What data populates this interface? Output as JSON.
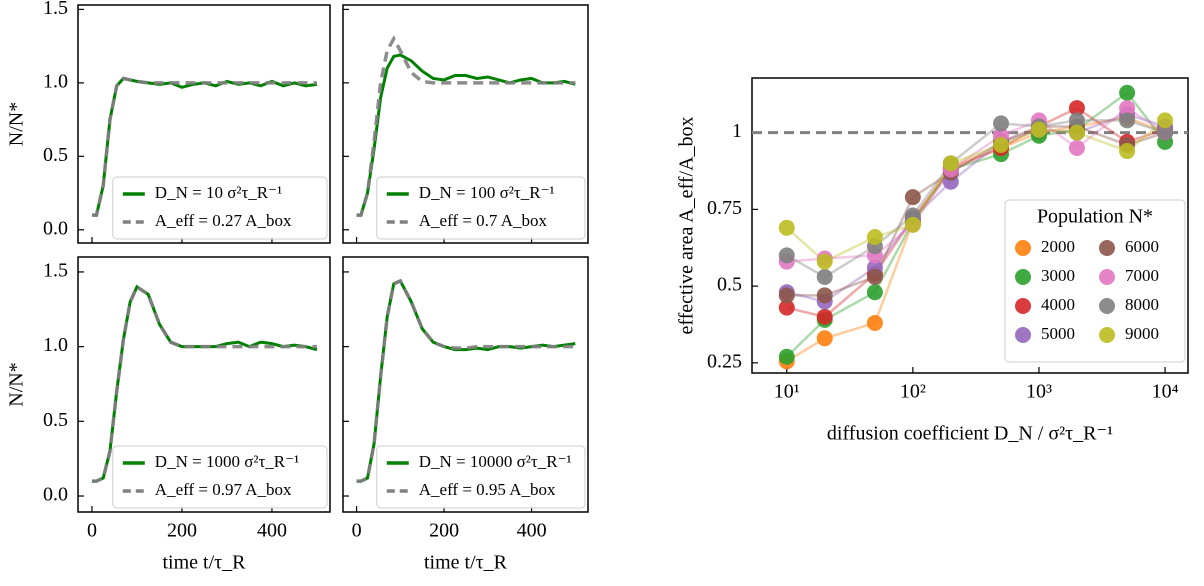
{
  "chart_data": [
    {
      "type": "line",
      "ylabel": "N/N*",
      "x": [
        0,
        10,
        25,
        40,
        55,
        70,
        85,
        100,
        125,
        150,
        175,
        200,
        225,
        250,
        275,
        300,
        325,
        350,
        375,
        400,
        425,
        450,
        475,
        500
      ],
      "series": [
        {
          "name": "D_N = 10 σ²τ_R⁻¹",
          "color": "#008000",
          "values": [
            0.1,
            0.1,
            0.3,
            0.75,
            0.98,
            1.03,
            1.02,
            1.01,
            1.0,
            0.99,
            1.0,
            0.97,
            0.99,
            1.0,
            0.98,
            1.01,
            0.99,
            1.0,
            0.98,
            1.01,
            0.98,
            1.0,
            0.98,
            0.99
          ]
        },
        {
          "name": "A_eff = 0.27 A_box",
          "color": "#808080",
          "dashed": true,
          "values": [
            0.1,
            0.1,
            0.3,
            0.75,
            0.98,
            1.03,
            1.02,
            1.01,
            1.0,
            1.0,
            1.0,
            1.0,
            1.0,
            1.0,
            1.0,
            1.0,
            1.0,
            1.0,
            1.0,
            1.0,
            1.0,
            1.0,
            1.0,
            1.0
          ]
        }
      ],
      "xlim": [
        -31,
        529
      ],
      "ylim": [
        -0.09,
        1.53
      ],
      "yticks": [
        {
          "value": 0,
          "label": "0.0"
        },
        0.5,
        {
          "value": 1,
          "label": "1.0"
        },
        1.5
      ],
      "legend": "lower right"
    },
    {
      "type": "line",
      "x": [
        0,
        10,
        25,
        40,
        55,
        70,
        85,
        100,
        125,
        150,
        175,
        200,
        225,
        250,
        275,
        300,
        325,
        350,
        375,
        400,
        425,
        450,
        475,
        500
      ],
      "series": [
        {
          "name": "D_N = 100 σ²τ_R⁻¹",
          "color": "#008000",
          "values": [
            0.1,
            0.1,
            0.25,
            0.55,
            0.9,
            1.1,
            1.18,
            1.19,
            1.15,
            1.08,
            1.03,
            1.02,
            1.05,
            1.05,
            1.03,
            1.04,
            1.02,
            1.0,
            1.02,
            1.03,
            1.0,
            1.0,
            1.01,
            0.99
          ]
        },
        {
          "name": "A_eff = 0.7 A_box",
          "color": "#808080",
          "dashed": true,
          "values": [
            0.1,
            0.1,
            0.25,
            0.6,
            1.0,
            1.22,
            1.3,
            1.22,
            1.07,
            1.01,
            1.0,
            1.0,
            1.0,
            1.0,
            1.0,
            1.0,
            1.0,
            1.0,
            1.0,
            1.0,
            1.0,
            1.0,
            1.0,
            1.0
          ]
        }
      ],
      "xlim": [
        -31,
        529
      ],
      "ylim": [
        -0.09,
        1.53
      ],
      "legend": "lower right"
    },
    {
      "type": "line",
      "ylabel": "N/N*",
      "xlabel": "time t/τ_R",
      "x": [
        0,
        10,
        25,
        40,
        55,
        70,
        85,
        100,
        125,
        150,
        175,
        200,
        225,
        250,
        275,
        300,
        325,
        350,
        375,
        400,
        425,
        450,
        475,
        500
      ],
      "series": [
        {
          "name": "D_N = 1000 σ²τ_R⁻¹",
          "color": "#008000",
          "values": [
            0.1,
            0.1,
            0.12,
            0.3,
            0.7,
            1.05,
            1.3,
            1.4,
            1.35,
            1.15,
            1.03,
            1.0,
            1.0,
            1.0,
            1.0,
            1.02,
            1.03,
            1.0,
            1.03,
            1.02,
            1.0,
            1.01,
            1.0,
            0.98
          ]
        },
        {
          "name": "A_eff = 0.97 A_box",
          "color": "#808080",
          "dashed": true,
          "values": [
            0.1,
            0.1,
            0.12,
            0.3,
            0.7,
            1.05,
            1.3,
            1.4,
            1.35,
            1.15,
            1.03,
            1.0,
            1.0,
            1.0,
            1.0,
            1.0,
            1.0,
            1.0,
            1.0,
            1.0,
            1.0,
            1.0,
            1.0,
            1.0
          ]
        }
      ],
      "xlim": [
        -31,
        529
      ],
      "ylim": [
        -0.107,
        1.6
      ],
      "yticks": [
        {
          "value": 0,
          "label": "0.0"
        },
        0.5,
        {
          "value": 1,
          "label": "1.0"
        },
        1.5
      ],
      "xticks": [
        0,
        200,
        400
      ],
      "legend": "lower right"
    },
    {
      "type": "line",
      "xlabel": "time t/τ_R",
      "x": [
        0,
        10,
        25,
        40,
        55,
        70,
        85,
        100,
        125,
        150,
        175,
        200,
        225,
        250,
        275,
        300,
        325,
        350,
        375,
        400,
        425,
        450,
        475,
        500
      ],
      "series": [
        {
          "name": "D_N = 10000 σ²τ_R⁻¹",
          "color": "#008000",
          "values": [
            0.1,
            0.1,
            0.12,
            0.35,
            0.8,
            1.2,
            1.42,
            1.44,
            1.3,
            1.12,
            1.03,
            1.0,
            0.98,
            0.98,
            0.99,
            0.98,
            1.0,
            1.0,
            0.99,
            1.0,
            1.01,
            1.0,
            1.01,
            1.02
          ]
        },
        {
          "name": "A_eff = 0.95 A_box",
          "color": "#808080",
          "dashed": true,
          "values": [
            0.1,
            0.1,
            0.12,
            0.35,
            0.8,
            1.2,
            1.42,
            1.44,
            1.3,
            1.12,
            1.03,
            1.0,
            0.99,
            0.99,
            1.0,
            1.0,
            1.0,
            1.0,
            1.0,
            1.0,
            1.0,
            1.0,
            1.0,
            1.0
          ]
        }
      ],
      "xlim": [
        -31,
        529
      ],
      "ylim": [
        -0.107,
        1.6
      ],
      "xticks": [
        0,
        200,
        400
      ],
      "legend": "lower right"
    },
    {
      "type": "scatter",
      "xscale": "log",
      "xlabel": "diffusion coefficient D_N / σ²τ_R⁻¹",
      "ylabel": "effective area A_eff/A_box",
      "x": [
        10,
        20,
        50,
        100,
        200,
        500,
        1000,
        2000,
        5000,
        10000
      ],
      "legend_title": "Population N*",
      "legend": "lower right",
      "series": [
        {
          "name": "2000",
          "color": "#ff7f0e",
          "values": [
            0.255,
            0.33,
            0.38,
            0.71,
            0.89,
            0.95,
            1.0,
            1.02,
            1.05,
            1.0
          ]
        },
        {
          "name": "3000",
          "color": "#2ca02c",
          "values": [
            0.27,
            0.39,
            0.48,
            0.71,
            0.88,
            0.93,
            0.99,
            1.01,
            1.13,
            0.97
          ]
        },
        {
          "name": "4000",
          "color": "#d62728",
          "values": [
            0.43,
            0.4,
            0.54,
            0.72,
            0.88,
            0.95,
            1.02,
            1.08,
            0.97,
            1.01
          ]
        },
        {
          "name": "5000",
          "color": "#9467bd",
          "values": [
            0.48,
            0.45,
            0.56,
            0.72,
            0.84,
            0.97,
            1.01,
            1.0,
            1.06,
            1.02
          ]
        },
        {
          "name": "6000",
          "color": "#8c564b",
          "values": [
            0.47,
            0.47,
            0.53,
            0.79,
            0.87,
            0.97,
            1.02,
            1.02,
            0.96,
            1.0
          ]
        },
        {
          "name": "7000",
          "color": "#e377c2",
          "values": [
            0.58,
            0.59,
            0.6,
            0.7,
            0.88,
            0.99,
            1.04,
            0.95,
            1.08,
            1.0
          ]
        },
        {
          "name": "8000",
          "color": "#7f7f7f",
          "values": [
            0.6,
            0.53,
            0.63,
            0.73,
            0.9,
            1.03,
            1.02,
            1.04,
            1.04,
            1.0
          ]
        },
        {
          "name": "9000",
          "color": "#bcbd22",
          "values": [
            0.69,
            0.58,
            0.66,
            0.7,
            0.9,
            0.96,
            1.01,
            1.0,
            0.94,
            1.04
          ]
        }
      ],
      "hline": 1,
      "xlim": [
        5.3,
        15200
      ],
      "ylim": [
        0.217,
        1.178
      ],
      "xticks": [
        {
          "value": 10,
          "label": "10¹"
        },
        {
          "value": 100,
          "label": "10²"
        },
        {
          "value": 1000,
          "label": "10³"
        },
        {
          "value": 10000,
          "label": "10⁴"
        }
      ],
      "yticks": [
        0.25,
        0.5,
        0.75,
        1
      ]
    }
  ]
}
